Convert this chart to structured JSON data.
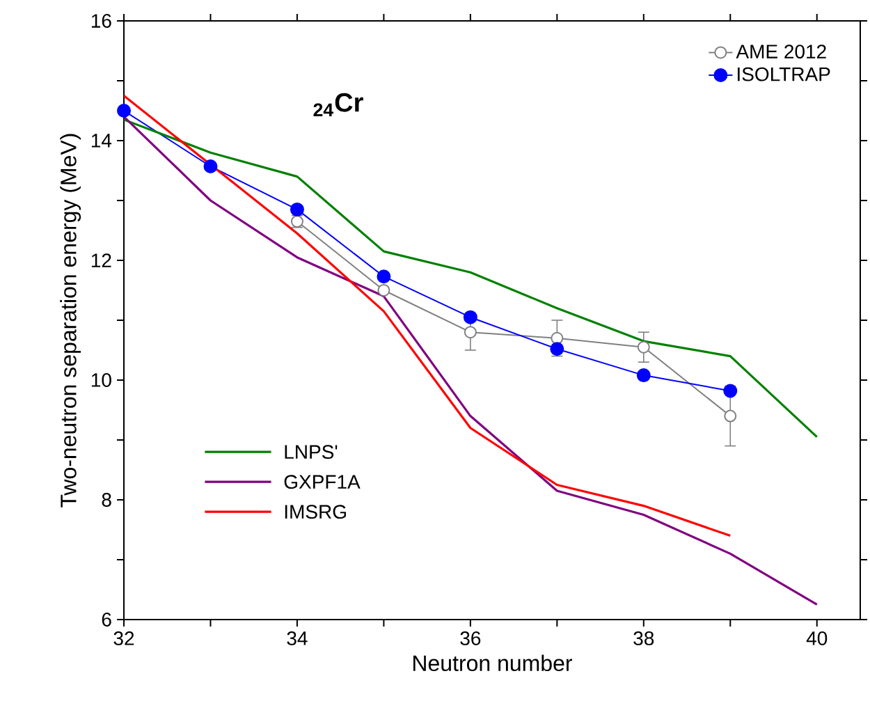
{
  "chart_data": {
    "type": "line",
    "xlabel": "Neutron number",
    "ylabel": "Two-neutron separation energy (MeV)",
    "annotations": [
      "$_{24}$Cr"
    ],
    "x": [
      32,
      33,
      34,
      35,
      36,
      37,
      38,
      39,
      40
    ],
    "xlim": [
      32,
      40.5
    ],
    "ylim": [
      6,
      16
    ],
    "xticks": [
      32,
      {
        "value": 33,
        "label": null
      },
      34,
      {
        "value": 35,
        "label": null
      },
      36,
      {
        "value": 37,
        "label": null
      },
      38,
      {
        "value": 39,
        "label": null
      },
      40
    ],
    "yticks": [
      6,
      {
        "value": 7,
        "label": null
      },
      8,
      {
        "value": 9,
        "label": null
      },
      10,
      {
        "value": 11,
        "label": null
      },
      12,
      {
        "value": 13,
        "label": null
      },
      14,
      {
        "value": 15,
        "label": null
      },
      16
    ],
    "legend": "top right",
    "grid": false,
    "series": [
      {
        "name": "AME 2012",
        "color": "#808080",
        "marker": "circle",
        "values": [
          null,
          null,
          12.65,
          11.5,
          10.8,
          10.7,
          10.55,
          9.4,
          null
        ],
        "errors": [
          null,
          null,
          0.1,
          null,
          0.3,
          0.3,
          0.25,
          0.5,
          null
        ]
      },
      {
        "name": "ISOLTRAP",
        "color": "#0000ff",
        "marker": "circle",
        "values": [
          14.5,
          13.57,
          12.85,
          11.73,
          11.05,
          10.52,
          10.08,
          9.82,
          null
        ]
      },
      {
        "name": "LNPS'",
        "color": "#008000",
        "marker": "none",
        "values": [
          14.35,
          13.8,
          13.4,
          12.15,
          11.8,
          11.2,
          10.65,
          10.4,
          9.05
        ]
      },
      {
        "name": "GXPF1A",
        "color": "#800080",
        "marker": "none",
        "values": [
          14.4,
          13.0,
          12.05,
          11.4,
          9.4,
          8.15,
          7.75,
          7.1,
          6.25
        ]
      },
      {
        "name": "IMSRG",
        "color": "#ff0000",
        "marker": "none",
        "values": [
          14.75,
          13.6,
          12.45,
          11.15,
          9.2,
          8.25,
          7.9,
          7.4,
          null
        ]
      }
    ]
  }
}
